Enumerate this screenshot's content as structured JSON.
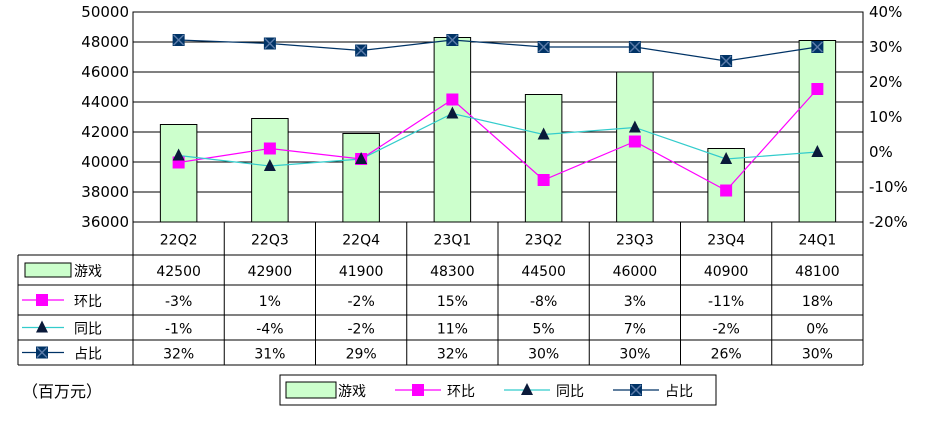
{
  "chart_data": {
    "type": "bar",
    "categories": [
      "22Q2",
      "22Q3",
      "22Q4",
      "23Q1",
      "23Q2",
      "23Q3",
      "23Q4",
      "24Q1"
    ],
    "y_left": {
      "min": 36000,
      "max": 50000,
      "step": 2000,
      "ticks": [
        "36000",
        "38000",
        "40000",
        "42000",
        "44000",
        "46000",
        "48000",
        "50000"
      ]
    },
    "y_right": {
      "min": -20,
      "max": 40,
      "step": 10,
      "ticks": [
        "-20%",
        "-10%",
        "0%",
        "10%",
        "20%",
        "30%",
        "40%"
      ]
    },
    "series": [
      {
        "name": "游戏",
        "kind": "bar",
        "axis": "left",
        "color": "#ccffcc",
        "values": [
          42500,
          42900,
          41900,
          48300,
          44500,
          46000,
          40900,
          48100
        ],
        "labels": [
          "42500",
          "42900",
          "41900",
          "48300",
          "44500",
          "46000",
          "40900",
          "48100"
        ]
      },
      {
        "name": "环比",
        "kind": "line",
        "axis": "right",
        "color": "#ff00ff",
        "marker": "square",
        "values": [
          -3,
          1,
          -2,
          15,
          -8,
          3,
          -11,
          18
        ],
        "labels": [
          "-3%",
          "1%",
          "-2%",
          "15%",
          "-8%",
          "3%",
          "-11%",
          "18%"
        ]
      },
      {
        "name": "同比",
        "kind": "line",
        "axis": "right",
        "color": "#33cccc",
        "marker": "triangle",
        "values": [
          -1,
          -4,
          -2,
          11,
          5,
          7,
          -2,
          0
        ],
        "labels": [
          "-1%",
          "-4%",
          "-2%",
          "11%",
          "5%",
          "7%",
          "-2%",
          "0%"
        ]
      },
      {
        "name": "占比",
        "kind": "line",
        "axis": "right",
        "color": "#003366",
        "marker": "x-square",
        "values": [
          32,
          31,
          29,
          32,
          30,
          30,
          26,
          30
        ],
        "labels": [
          "32%",
          "31%",
          "29%",
          "32%",
          "30%",
          "30%",
          "26%",
          "30%"
        ]
      }
    ],
    "unit_label": "（百万元）",
    "legend": [
      "游戏",
      "环比",
      "同比",
      "占比"
    ],
    "legend_position": "bottom"
  }
}
